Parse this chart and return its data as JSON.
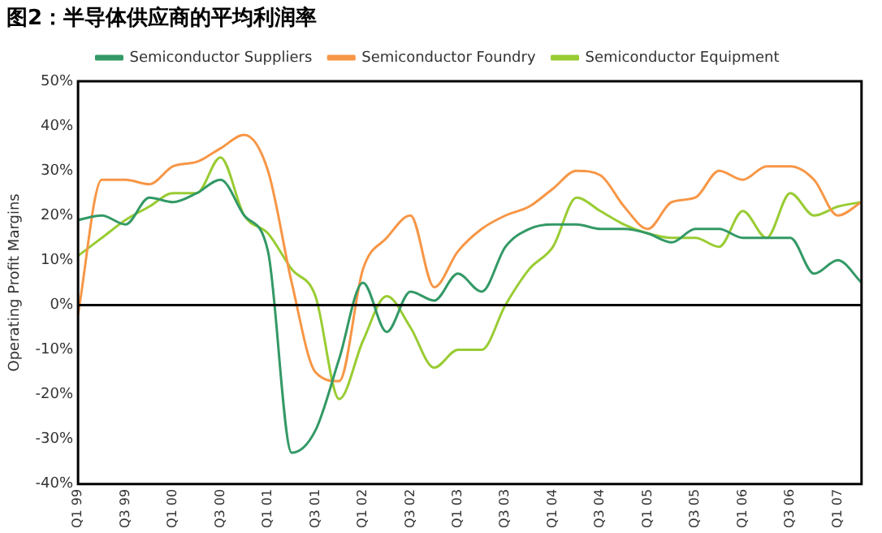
{
  "chart_data": {
    "type": "line",
    "title": "图2：半导体供应商的平均利润率",
    "ylabel": "Operating Profit Margins",
    "categories": [
      "Q1 99",
      null,
      "Q3 99",
      null,
      "Q1 00",
      null,
      "Q3 00",
      null,
      "Q1 01",
      null,
      "Q3 01",
      null,
      "Q1 02",
      null,
      "Q3 02",
      null,
      "Q1 03",
      null,
      "Q3 03",
      null,
      "Q1 04",
      null,
      "Q3 04",
      null,
      "Q1 05",
      null,
      "Q3 05",
      null,
      "Q1 06",
      null,
      "Q3 06",
      null,
      "Q1 07",
      null
    ],
    "series": [
      {
        "name": "Semiconductor Suppliers",
        "color": "#339966",
        "values": [
          19,
          20,
          18,
          24,
          23,
          25,
          28,
          20,
          12,
          -33,
          -28,
          -12,
          5,
          -6,
          3,
          1,
          7,
          3,
          13,
          17,
          18,
          18,
          17,
          17,
          16,
          14,
          17,
          17,
          15,
          15,
          15,
          7,
          10,
          5
        ]
      },
      {
        "name": "Semiconductor Foundry",
        "color": "#f79646",
        "values": [
          -2,
          28,
          28,
          27,
          31,
          32,
          35,
          38,
          30,
          5,
          -15,
          -17,
          8,
          15,
          20,
          4,
          12,
          17,
          20,
          22,
          26,
          30,
          29,
          22,
          17,
          23,
          24,
          30,
          28,
          31,
          31,
          28,
          20,
          23
        ]
      },
      {
        "name": "Semiconductor Equipment",
        "color": "#99cc33",
        "values": [
          11,
          15,
          19,
          22,
          25,
          25,
          33,
          20,
          16,
          8,
          2,
          -21,
          -8,
          2,
          -5,
          -14,
          -10,
          -10,
          0,
          8,
          13,
          24,
          21,
          18,
          16,
          15,
          15,
          13,
          21,
          15,
          25,
          20,
          22,
          23
        ]
      }
    ],
    "ylim": [
      -40,
      50
    ],
    "yticks": [
      {
        "value": -40,
        "label": "-40%"
      },
      {
        "value": -30,
        "label": "-30%"
      },
      {
        "value": -20,
        "label": "-20%"
      },
      {
        "value": -10,
        "label": "-10%"
      },
      {
        "value": 0,
        "label": "0%"
      },
      {
        "value": 10,
        "label": "10%"
      },
      {
        "value": 20,
        "label": "20%"
      },
      {
        "value": 30,
        "label": "30%"
      },
      {
        "value": 40,
        "label": "40%"
      },
      {
        "value": 50,
        "label": "50%"
      }
    ],
    "ref_lines": [
      {
        "axis": "y",
        "value": 0,
        "color": "#000000"
      }
    ],
    "grid": false,
    "legend": "top",
    "marker": "none",
    "line_style": "solid"
  }
}
